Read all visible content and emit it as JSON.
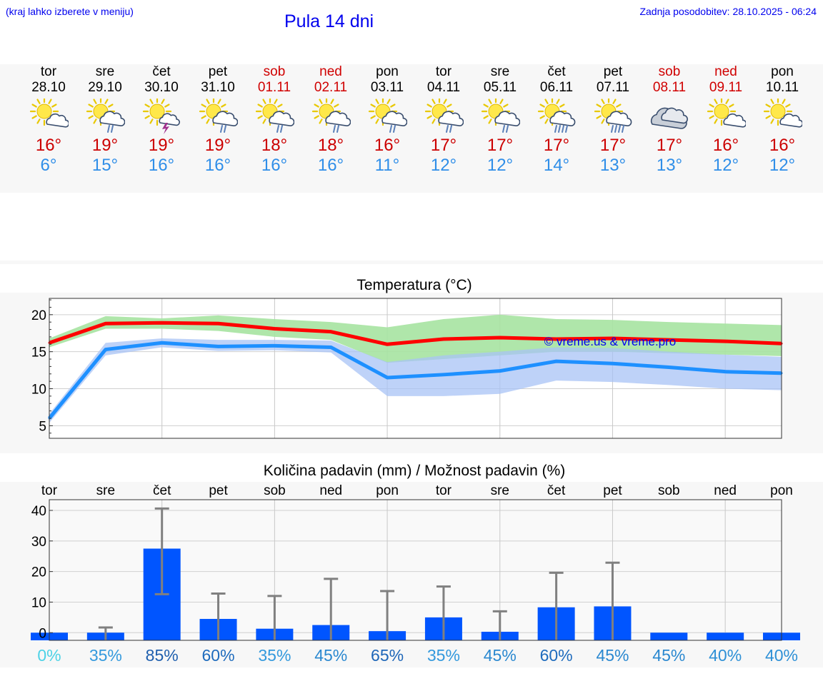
{
  "header": {
    "hint": "(kraj lahko izberete v meniju)",
    "title": "Pula 14 dni",
    "updated": "Zadnja posodobitev: 28.10.2025 - 06:24"
  },
  "days": [
    {
      "name": "tor",
      "date": "28.10",
      "weekend": false,
      "icon": "sun-cloud-icon",
      "max": "16°",
      "min": "6°"
    },
    {
      "name": "sre",
      "date": "29.10",
      "weekend": false,
      "icon": "sun-cloud-rain-icon",
      "max": "19°",
      "min": "15°"
    },
    {
      "name": "čet",
      "date": "30.10",
      "weekend": false,
      "icon": "sun-thunder-icon",
      "max": "19°",
      "min": "16°"
    },
    {
      "name": "pet",
      "date": "31.10",
      "weekend": false,
      "icon": "sun-cloud-rain-icon",
      "max": "19°",
      "min": "16°"
    },
    {
      "name": "sob",
      "date": "01.11",
      "weekend": true,
      "icon": "sun-cloud-rain-icon",
      "max": "18°",
      "min": "16°"
    },
    {
      "name": "ned",
      "date": "02.11",
      "weekend": true,
      "icon": "sun-cloud-rain-icon",
      "max": "18°",
      "min": "16°"
    },
    {
      "name": "pon",
      "date": "03.11",
      "weekend": false,
      "icon": "sun-cloud-rain-icon",
      "max": "16°",
      "min": "11°"
    },
    {
      "name": "tor",
      "date": "04.11",
      "weekend": false,
      "icon": "sun-cloud-rain-icon",
      "max": "17°",
      "min": "12°"
    },
    {
      "name": "sre",
      "date": "05.11",
      "weekend": false,
      "icon": "sun-cloud-rain-icon",
      "max": "17°",
      "min": "12°"
    },
    {
      "name": "čet",
      "date": "06.11",
      "weekend": false,
      "icon": "sun-cloud-heavy-rain-icon",
      "max": "17°",
      "min": "14°"
    },
    {
      "name": "pet",
      "date": "07.11",
      "weekend": false,
      "icon": "sun-cloud-heavy-rain-icon",
      "max": "17°",
      "min": "13°"
    },
    {
      "name": "sob",
      "date": "08.11",
      "weekend": true,
      "icon": "cloud-icon",
      "max": "17°",
      "min": "13°"
    },
    {
      "name": "ned",
      "date": "09.11",
      "weekend": true,
      "icon": "sun-cloud-icon",
      "max": "16°",
      "min": "12°"
    },
    {
      "name": "pon",
      "date": "10.11",
      "weekend": false,
      "icon": "sun-cloud-icon",
      "max": "16°",
      "min": "12°"
    }
  ],
  "colors": {
    "max_line": "#ff0000",
    "max_band": "#a6e3a1",
    "min_line": "#1e90ff",
    "min_band": "#a8c3f5",
    "bar": "#0055ff",
    "errorbar": "#808080"
  },
  "chart_data": [
    {
      "type": "line",
      "title": "Temperatura (°C)",
      "watermark": "© vreme.us & vreme.pro",
      "ylim": [
        3.3,
        22.2
      ],
      "yticks": [
        5,
        10,
        15,
        20
      ],
      "x": [
        0,
        1,
        2,
        3,
        4,
        5,
        6,
        7,
        8,
        9,
        10,
        11,
        12,
        13
      ],
      "series": [
        {
          "name": "max",
          "values": [
            16.2,
            18.8,
            18.9,
            18.8,
            18.1,
            17.7,
            16.0,
            16.7,
            16.9,
            16.7,
            16.8,
            16.6,
            16.4,
            16.1
          ],
          "band_low": [
            15.6,
            18.1,
            18.1,
            17.8,
            17.0,
            16.6,
            13.5,
            14.0,
            14.5,
            15.0,
            15.0,
            14.8,
            14.6,
            14.4
          ],
          "band_high": [
            16.8,
            19.8,
            19.5,
            19.9,
            19.4,
            19.0,
            18.3,
            19.4,
            20.0,
            19.4,
            19.3,
            19.0,
            18.8,
            18.6
          ]
        },
        {
          "name": "min",
          "values": [
            6.0,
            15.3,
            16.2,
            15.7,
            15.8,
            15.6,
            11.5,
            11.9,
            12.4,
            13.7,
            13.4,
            12.9,
            12.3,
            12.1
          ],
          "band_low": [
            5.4,
            14.5,
            15.6,
            15.1,
            15.2,
            14.9,
            9.0,
            9.0,
            9.3,
            11.1,
            10.9,
            10.5,
            10.0,
            9.8
          ],
          "band_high": [
            6.6,
            16.2,
            16.8,
            16.6,
            16.6,
            16.5,
            13.6,
            14.5,
            15.0,
            15.6,
            15.5,
            15.0,
            14.6,
            14.3
          ]
        }
      ]
    },
    {
      "type": "bar",
      "title": "Količina padavin (mm) / Možnost padavin (%)",
      "ylim": [
        -2.5,
        43.5
      ],
      "yticks": [
        0,
        10,
        20,
        30,
        40
      ],
      "categories": [
        "tor",
        "sre",
        "čet",
        "pet",
        "sob",
        "ned",
        "pon",
        "tor",
        "sre",
        "čet",
        "pet",
        "sob",
        "ned",
        "pon"
      ],
      "values": [
        0.0,
        0.0,
        27.5,
        4.5,
        1.3,
        2.5,
        0.5,
        5.0,
        0.3,
        8.3,
        8.6,
        0.0,
        0.0,
        0.0
      ],
      "error_high": [
        0.0,
        1.7,
        40.6,
        12.8,
        12.0,
        17.6,
        13.6,
        15.1,
        7.0,
        19.6,
        22.9,
        0.0,
        0.0,
        0.0
      ],
      "error_low": [
        0.0,
        0.0,
        12.6,
        0.0,
        0.0,
        0.0,
        0.0,
        0.0,
        0.0,
        0.0,
        0.0,
        0.0,
        0.0,
        0.0
      ],
      "probabilities": [
        "0%",
        "35%",
        "85%",
        "60%",
        "35%",
        "45%",
        "65%",
        "35%",
        "45%",
        "60%",
        "45%",
        "45%",
        "40%",
        "40%"
      ],
      "probability_colors": [
        "#4dd2e6",
        "#3399dd",
        "#1f5fae",
        "#1e6bbd",
        "#3399dd",
        "#2a88d0",
        "#1e66b8",
        "#3399dd",
        "#2a88d0",
        "#1e6bbd",
        "#2a88d0",
        "#2a88d0",
        "#2e90d6",
        "#2e90d6"
      ]
    }
  ]
}
